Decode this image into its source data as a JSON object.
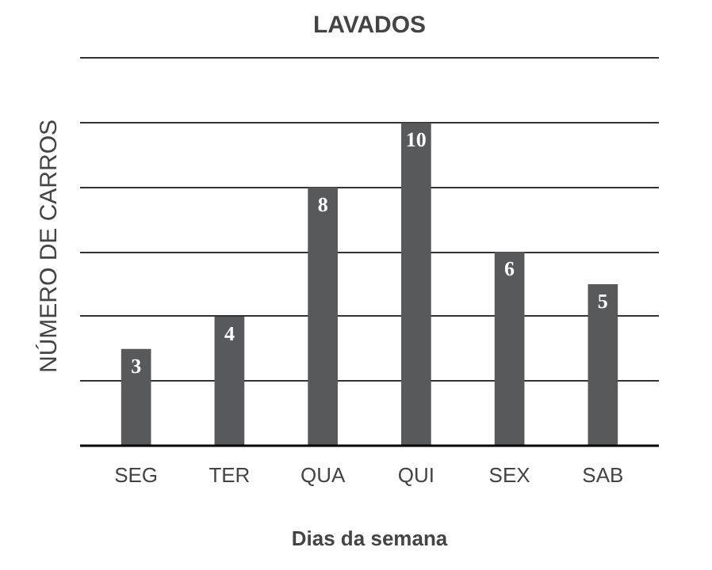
{
  "chart_data": {
    "type": "bar",
    "title": "LAVADOS",
    "xlabel": "Dias da semana",
    "ylabel": "NÚMERO DE CARROS",
    "categories": [
      "SEG",
      "TER",
      "QUA",
      "QUI",
      "SEX",
      "SAB"
    ],
    "values": [
      3,
      4,
      8,
      10,
      6,
      5
    ],
    "color": "#58595b",
    "data_labels": true,
    "yticks": [
      {
        "value": 0,
        "label": null
      },
      {
        "value": 2,
        "label": null
      },
      {
        "value": 4,
        "label": null
      },
      {
        "value": 6,
        "label": null
      },
      {
        "value": 8,
        "label": null
      },
      {
        "value": 10,
        "label": null
      },
      {
        "value": 12,
        "label": null
      }
    ],
    "grid": "y",
    "tick_labels": "x"
  }
}
